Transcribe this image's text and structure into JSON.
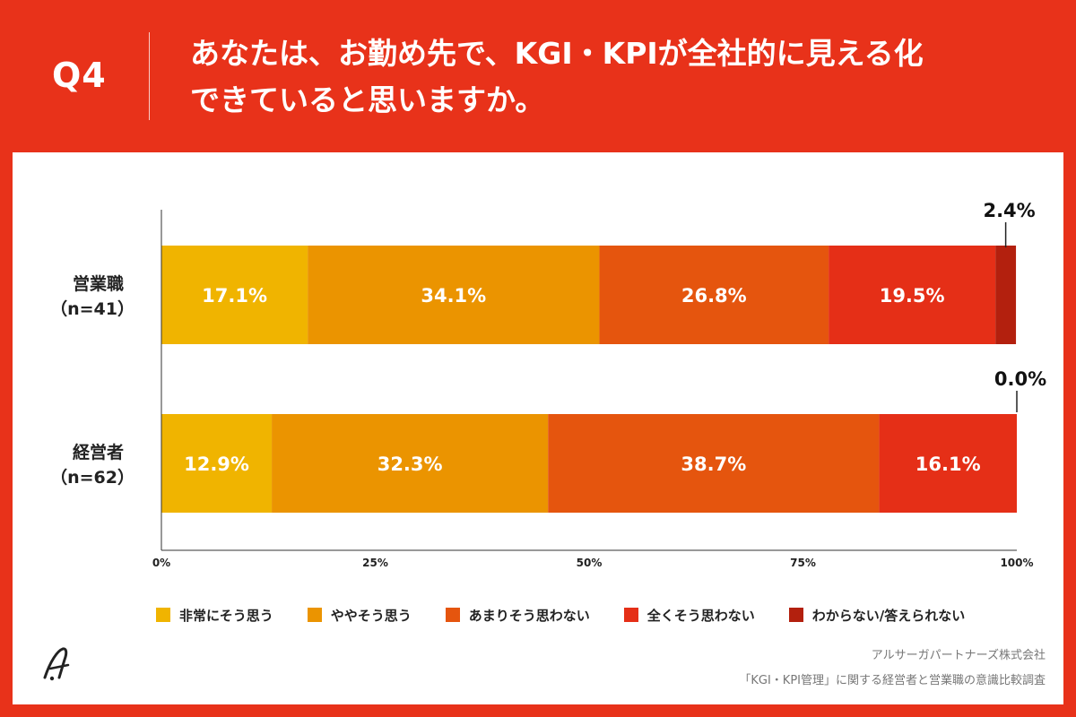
{
  "header": {
    "q_number": "Q4",
    "question_line1": "あなたは、お勤め先で、KGI・KPIが全社的に見える化",
    "question_line2": "できていると思いますか。"
  },
  "chart_data": {
    "type": "bar",
    "orientation": "horizontal",
    "stacked": true,
    "percent_stacked": true,
    "categories": [
      "営業職\n（n=41）",
      "経営者\n（n=62）"
    ],
    "category_labels": [
      {
        "name": "営業職",
        "n": "（n=41）"
      },
      {
        "name": "経営者",
        "n": "（n=62）"
      }
    ],
    "series": [
      {
        "name": "非常にそう思う",
        "color": "#F0B400",
        "values": [
          17.1,
          12.9
        ],
        "labels": [
          "17.1%",
          "12.9%"
        ]
      },
      {
        "name": "ややそう思う",
        "color": "#EB9400",
        "values": [
          34.1,
          32.3
        ],
        "labels": [
          "34.1%",
          "32.3%"
        ]
      },
      {
        "name": "あまりそう思わない",
        "color": "#E5550E",
        "values": [
          26.8,
          38.7
        ],
        "labels": [
          "26.8%",
          "38.7%"
        ]
      },
      {
        "name": "全くそう思わない",
        "color": "#E52F17",
        "values": [
          19.5,
          16.1
        ],
        "labels": [
          "19.5%",
          "16.1%"
        ]
      },
      {
        "name": "わからない/答えられない",
        "color": "#B3200E",
        "values": [
          2.4,
          0.0
        ],
        "labels": [
          "2.4%",
          "0.0%"
        ]
      }
    ],
    "xlim": [
      0,
      100
    ],
    "xticks": [
      "0%",
      "25%",
      "50%",
      "75%",
      "100%"
    ],
    "legend": "bottom",
    "grid": false
  },
  "footer": {
    "company": "アルサーガパートナーズ株式会社",
    "survey": "「KGI・KPI管理」に関する経営者と営業職の意識比較調査"
  }
}
